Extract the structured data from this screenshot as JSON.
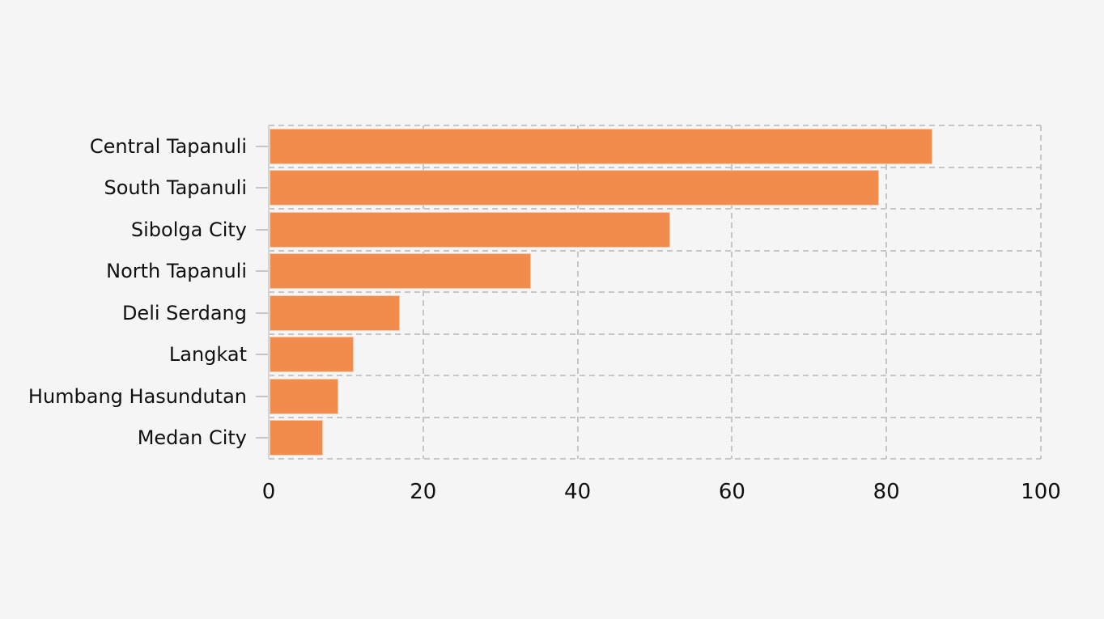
{
  "chart_data": {
    "type": "bar",
    "orientation": "horizontal",
    "title": "",
    "xlabel": "",
    "ylabel": "",
    "categories": [
      "Central Tapanuli",
      "South Tapanuli",
      "Sibolga City",
      "North Tapanuli",
      "Deli Serdang",
      "Langkat",
      "Humbang Hasundutan",
      "Medan City"
    ],
    "values": [
      86,
      79,
      52,
      34,
      17,
      11,
      9,
      7
    ],
    "xlim": [
      0,
      100
    ],
    "xticks": [
      0,
      20,
      40,
      60,
      80,
      100
    ],
    "grid": true,
    "grid_style": "dashed",
    "legend": "none",
    "colors": {
      "bar": "#F28C4D",
      "background": "#F5F5F5",
      "gridline": "#C6C6C6",
      "axis_line": "#D4D4D4",
      "tick": "#C6C6C6",
      "text": "#101010"
    }
  }
}
